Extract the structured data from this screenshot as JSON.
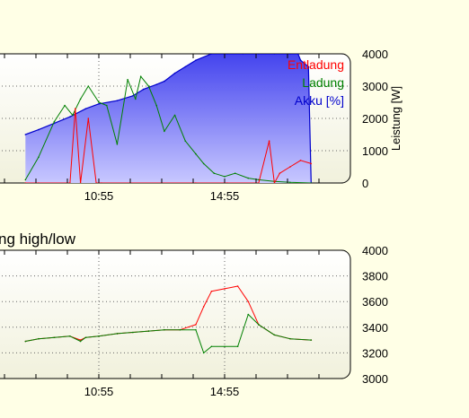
{
  "chart_data": [
    {
      "type": "area",
      "title": "",
      "xlabel": "",
      "ylabel": "Leistung [W]",
      "x_ticks": [
        "10:55",
        "14:55"
      ],
      "y_ticks": [
        0,
        1000,
        2000,
        3000,
        4000
      ],
      "ylim": [
        0,
        4000
      ],
      "grid": true,
      "legend_position": "top-right",
      "series": [
        {
          "name": "Akku [%]",
          "color": "#0000cc",
          "fill": true,
          "x": [
            "08:35",
            "09:00",
            "09:30",
            "10:00",
            "10:30",
            "10:55",
            "11:30",
            "12:00",
            "12:20",
            "12:45",
            "13:00",
            "13:20",
            "13:40",
            "14:00",
            "14:30",
            "15:00",
            "15:30",
            "16:00",
            "16:30",
            "17:00",
            "17:15",
            "17:20",
            "17:35",
            "17:40"
          ],
          "values": [
            1500,
            1650,
            1850,
            2050,
            2300,
            2450,
            2550,
            2700,
            2900,
            3050,
            3150,
            3400,
            3600,
            3800,
            4000,
            4000,
            4000,
            4000,
            4000,
            4000,
            4000,
            3800,
            3600,
            0
          ]
        },
        {
          "name": "Ladung",
          "color": "#008000",
          "x": [
            "08:35",
            "09:00",
            "09:30",
            "09:50",
            "10:05",
            "10:20",
            "10:35",
            "10:55",
            "11:10",
            "11:30",
            "11:50",
            "12:05",
            "12:15",
            "12:30",
            "12:45",
            "13:00",
            "13:20",
            "13:40",
            "14:00",
            "14:15",
            "14:35",
            "14:55",
            "15:15",
            "15:40",
            "16:00",
            "16:30",
            "17:00",
            "17:40"
          ],
          "values": [
            100,
            800,
            1900,
            2400,
            2100,
            2600,
            3000,
            2500,
            2400,
            1200,
            3200,
            2600,
            3300,
            3000,
            2400,
            1600,
            2100,
            1300,
            900,
            600,
            300,
            200,
            300,
            150,
            100,
            50,
            20,
            0
          ]
        },
        {
          "name": "Entladung",
          "color": "#ff0000",
          "x": [
            "08:35",
            "09:00",
            "10:00",
            "10:10",
            "10:20",
            "10:35",
            "10:50",
            "11:00",
            "14:00",
            "15:00",
            "16:00",
            "16:20",
            "16:30",
            "16:40",
            "17:00",
            "17:20",
            "17:40"
          ],
          "values": [
            0,
            0,
            0,
            2300,
            0,
            2000,
            0,
            0,
            0,
            0,
            0,
            1300,
            0,
            300,
            500,
            700,
            600
          ]
        }
      ]
    },
    {
      "type": "line",
      "title": "ng high/low",
      "xlabel": "",
      "ylabel": "",
      "x_ticks": [
        "10:55",
        "14:55"
      ],
      "y_ticks": [
        3000,
        3200,
        3400,
        3600,
        3800,
        4000
      ],
      "ylim": [
        3000,
        4000
      ],
      "grid": true,
      "series": [
        {
          "name": "high",
          "color": "#ff0000",
          "x": [
            "08:35",
            "09:00",
            "09:30",
            "10:00",
            "10:20",
            "10:30",
            "10:55",
            "11:30",
            "12:00",
            "12:30",
            "13:00",
            "13:30",
            "14:00",
            "14:15",
            "14:30",
            "14:55",
            "15:20",
            "15:40",
            "16:00",
            "16:30",
            "17:00",
            "17:40"
          ],
          "values": [
            3290,
            3310,
            3320,
            3330,
            3300,
            3320,
            3330,
            3350,
            3360,
            3370,
            3380,
            3380,
            3420,
            3560,
            3680,
            3700,
            3720,
            3600,
            3420,
            3340,
            3310,
            3300
          ]
        },
        {
          "name": "low",
          "color": "#008000",
          "x": [
            "08:35",
            "09:00",
            "09:30",
            "10:00",
            "10:20",
            "10:30",
            "10:55",
            "11:30",
            "12:00",
            "12:30",
            "13:00",
            "13:30",
            "14:00",
            "14:15",
            "14:30",
            "14:55",
            "15:20",
            "15:40",
            "16:00",
            "16:30",
            "17:00",
            "17:40"
          ],
          "values": [
            3290,
            3310,
            3320,
            3330,
            3290,
            3320,
            3330,
            3350,
            3360,
            3370,
            3380,
            3380,
            3380,
            3200,
            3250,
            3250,
            3250,
            3500,
            3420,
            3340,
            3310,
            3300
          ]
        }
      ]
    }
  ]
}
